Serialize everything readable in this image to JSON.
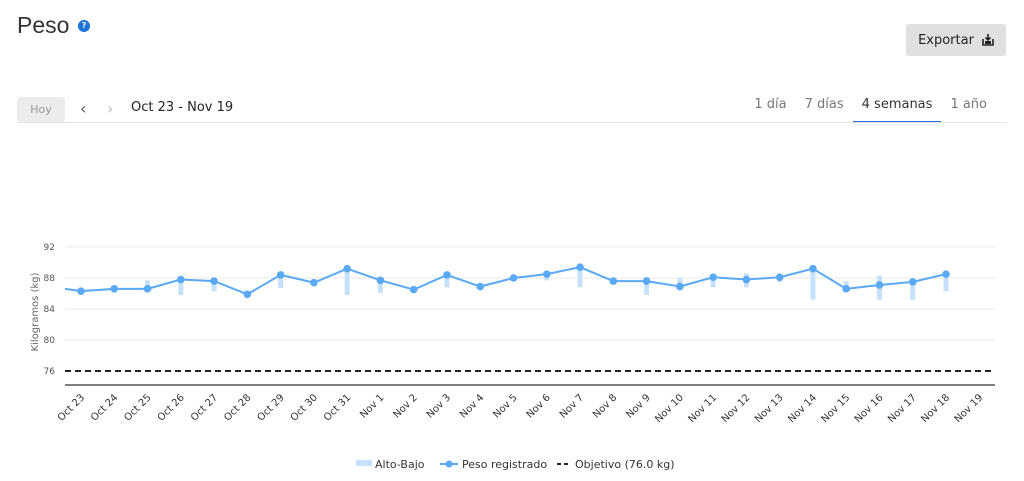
{
  "header": {
    "title": "Peso",
    "help_icon": "question-circle-icon",
    "export_label": "Exportar",
    "export_icon": "export-tray-icon"
  },
  "nav": {
    "today_label": "Hoy",
    "prev_icon": "chevron-left-icon",
    "next_icon": "chevron-right-icon",
    "date_range": "Oct 23 - Nov 19"
  },
  "tabs": [
    {
      "label": "1 día"
    },
    {
      "label": "7 días"
    },
    {
      "label": "4 semanas",
      "active": true
    },
    {
      "label": "1 año"
    }
  ],
  "colors": {
    "line": "#5aa9f5",
    "range": "#c6e1fb",
    "goal": "#222222",
    "accent": "#1a73d9"
  },
  "chart_data": {
    "type": "line",
    "ylabel": "Kilogramos (kg)",
    "ylim": [
      74.2,
      94
    ],
    "yticks": [
      "92",
      "88",
      "84",
      "80",
      "76"
    ],
    "categories": [
      "Oct 23",
      "Oct 24",
      "Oct 25",
      "Oct 26",
      "Oct 27",
      "Oct 28",
      "Oct 29",
      "Oct 30",
      "Oct 31",
      "Nov 1",
      "Nov 2",
      "Nov 3",
      "Nov 4",
      "Nov 5",
      "Nov 6",
      "Nov 7",
      "Nov 8",
      "Nov 9",
      "Nov 10",
      "Nov 11",
      "Nov 12",
      "Nov 13",
      "Nov 14",
      "Nov 15",
      "Nov 16",
      "Nov 17",
      "Nov 18",
      "Nov 19"
    ],
    "previous_value": 86.6,
    "series": [
      {
        "name": "Peso registrado",
        "values": [
          86.3,
          86.6,
          86.6,
          87.8,
          87.6,
          85.9,
          88.4,
          87.4,
          89.2,
          87.7,
          86.5,
          88.4,
          86.9,
          88.0,
          88.5,
          89.4,
          87.6,
          87.6,
          86.9,
          88.1,
          87.8,
          88.1,
          89.2,
          86.6,
          87.1,
          87.5,
          88.5,
          null
        ]
      },
      {
        "name": "Alto-Bajo",
        "ranges": [
          null,
          null,
          [
            86.6,
            87.7
          ],
          [
            85.8,
            87.8
          ],
          [
            86.3,
            87.6
          ],
          null,
          [
            86.7,
            88.4
          ],
          null,
          [
            85.8,
            89.2
          ],
          [
            86.1,
            87.7
          ],
          null,
          [
            86.8,
            88.4
          ],
          null,
          null,
          [
            87.7,
            88.5
          ],
          [
            86.8,
            89.4
          ],
          null,
          [
            85.8,
            88.1
          ],
          [
            86.9,
            88.0
          ],
          [
            86.8,
            88.1
          ],
          [
            86.8,
            88.6
          ],
          [
            87.5,
            88.1
          ],
          [
            85.2,
            89.6
          ],
          [
            86.4,
            87.6
          ],
          [
            85.2,
            88.3
          ],
          [
            85.2,
            87.5
          ],
          [
            86.3,
            88.5
          ],
          null
        ]
      }
    ],
    "goal": {
      "label": "Objetivo (76.0 kg)",
      "value": 76.0
    },
    "legend": [
      {
        "label": "Alto-Bajo"
      },
      {
        "label": "Peso registrado"
      },
      {
        "label": "Objetivo (76.0 kg)"
      }
    ],
    "legend_position": "bottom"
  }
}
